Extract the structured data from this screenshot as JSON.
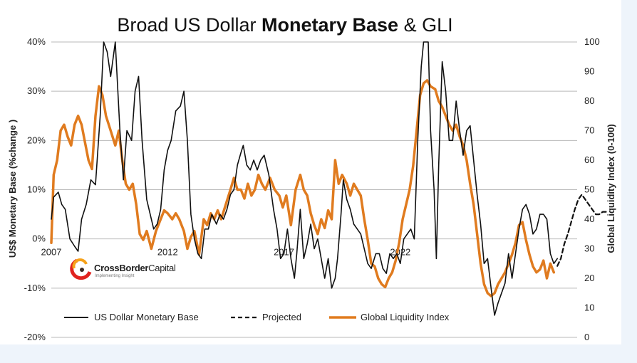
{
  "chart_data": {
    "type": "line",
    "title_regular_1": "Broad US Dollar ",
    "title_bold": "Monetary Base",
    "title_regular_2": " & GLI",
    "ylabel_left": "US$ Monetary Base (%change )",
    "ylabel_right": "Global Liquidity Index (0-100)",
    "left_axis": {
      "min": -20,
      "max": 40,
      "step": 10,
      "ticks": [
        "-20%",
        "-10%",
        "0%",
        "10%",
        "20%",
        "30%",
        "40%"
      ]
    },
    "right_axis": {
      "min": 0,
      "max": 100,
      "step": 10,
      "ticks": [
        "0",
        "10",
        "20",
        "30",
        "40",
        "50",
        "60",
        "70",
        "80",
        "90",
        "100"
      ]
    },
    "x_range": [
      2007.0,
      2029.6
    ],
    "x_ticks": [
      {
        "value": 2007,
        "label": "2007"
      },
      {
        "value": 2012,
        "label": "2012"
      },
      {
        "value": 2017,
        "label": "2017"
      },
      {
        "value": 2022,
        "label": "2022"
      }
    ],
    "grid": "horizontal",
    "legend_position": "bottom",
    "series": [
      {
        "name": "US Dollar Monetary Base",
        "axis": "left",
        "color": "#111111",
        "style": "solid",
        "points": [
          [
            2007.0,
            4
          ],
          [
            2007.1,
            8.5
          ],
          [
            2007.3,
            9.5
          ],
          [
            2007.45,
            7
          ],
          [
            2007.6,
            6
          ],
          [
            2007.8,
            0
          ],
          [
            2008.0,
            -1.5
          ],
          [
            2008.15,
            -2.5
          ],
          [
            2008.3,
            4
          ],
          [
            2008.5,
            7
          ],
          [
            2008.7,
            12
          ],
          [
            2008.9,
            11
          ],
          [
            2009.1,
            25
          ],
          [
            2009.25,
            42
          ],
          [
            2009.4,
            38
          ],
          [
            2009.55,
            33
          ],
          [
            2009.75,
            42
          ],
          [
            2009.95,
            22
          ],
          [
            2010.1,
            12
          ],
          [
            2010.25,
            22
          ],
          [
            2010.45,
            20
          ],
          [
            2010.6,
            30
          ],
          [
            2010.75,
            33
          ],
          [
            2010.9,
            20
          ],
          [
            2011.1,
            8
          ],
          [
            2011.25,
            5
          ],
          [
            2011.4,
            2
          ],
          [
            2011.55,
            3
          ],
          [
            2011.7,
            6
          ],
          [
            2011.85,
            14
          ],
          [
            2012.0,
            18
          ],
          [
            2012.15,
            20
          ],
          [
            2012.35,
            26
          ],
          [
            2012.55,
            27
          ],
          [
            2012.7,
            30
          ],
          [
            2012.85,
            20
          ],
          [
            2013.0,
            5
          ],
          [
            2013.15,
            0
          ],
          [
            2013.3,
            -3
          ],
          [
            2013.45,
            -4
          ],
          [
            2013.6,
            2
          ],
          [
            2013.75,
            2
          ],
          [
            2013.9,
            5
          ],
          [
            2014.1,
            3
          ],
          [
            2014.25,
            5
          ],
          [
            2014.4,
            4
          ],
          [
            2014.55,
            6
          ],
          [
            2014.7,
            9
          ],
          [
            2014.85,
            10
          ],
          [
            2015.0,
            15
          ],
          [
            2015.15,
            17.5
          ],
          [
            2015.25,
            19
          ],
          [
            2015.4,
            15
          ],
          [
            2015.55,
            14
          ],
          [
            2015.7,
            16
          ],
          [
            2015.85,
            14
          ],
          [
            2016.0,
            16
          ],
          [
            2016.15,
            17
          ],
          [
            2016.35,
            13
          ],
          [
            2016.55,
            6
          ],
          [
            2016.7,
            2
          ],
          [
            2016.85,
            -4
          ],
          [
            2017.0,
            -3
          ],
          [
            2017.15,
            2
          ],
          [
            2017.3,
            -4
          ],
          [
            2017.45,
            -8
          ],
          [
            2017.55,
            -3
          ],
          [
            2017.7,
            6
          ],
          [
            2017.85,
            -4
          ],
          [
            2018.0,
            -1
          ],
          [
            2018.15,
            3
          ],
          [
            2018.3,
            -2
          ],
          [
            2018.45,
            0
          ],
          [
            2018.6,
            -4
          ],
          [
            2018.75,
            -8
          ],
          [
            2018.9,
            -4
          ],
          [
            2019.05,
            -10
          ],
          [
            2019.2,
            -8
          ],
          [
            2019.3,
            -4
          ],
          [
            2019.45,
            5
          ],
          [
            2019.55,
            12
          ],
          [
            2019.7,
            8
          ],
          [
            2019.85,
            6
          ],
          [
            2020.0,
            3
          ],
          [
            2020.15,
            2
          ],
          [
            2020.3,
            1
          ],
          [
            2020.45,
            -2
          ],
          [
            2020.6,
            -5
          ],
          [
            2020.75,
            -6
          ],
          [
            2020.95,
            -3
          ],
          [
            2021.1,
            -3
          ],
          [
            2021.25,
            -6
          ],
          [
            2021.4,
            -7
          ],
          [
            2021.55,
            -3
          ],
          [
            2021.7,
            -4
          ],
          [
            2021.85,
            -3
          ],
          [
            2022.0,
            -5
          ],
          [
            2022.15,
            0
          ],
          [
            2022.3,
            1
          ],
          [
            2022.45,
            2
          ],
          [
            2022.6,
            0
          ],
          [
            2022.75,
            20
          ],
          [
            2022.9,
            35
          ],
          [
            2023.0,
            40
          ],
          [
            2023.1,
            42
          ],
          [
            2023.2,
            40
          ],
          [
            2023.3,
            22
          ],
          [
            2023.45,
            10
          ],
          [
            2023.55,
            -4
          ],
          [
            2023.65,
            15
          ],
          [
            2023.8,
            36
          ],
          [
            2023.95,
            30
          ],
          [
            2024.1,
            20
          ],
          [
            2024.25,
            20
          ],
          [
            2024.4,
            28
          ],
          [
            2024.55,
            22
          ],
          [
            2024.7,
            17
          ],
          [
            2024.85,
            22
          ],
          [
            2025.0,
            23
          ],
          [
            2025.15,
            16
          ],
          [
            2025.3,
            9
          ],
          [
            2025.45,
            3
          ],
          [
            2025.6,
            -5
          ],
          [
            2025.75,
            -4
          ],
          [
            2025.9,
            -10
          ],
          [
            2026.05,
            -15.5
          ],
          [
            2026.2,
            -13
          ],
          [
            2026.35,
            -11
          ],
          [
            2026.5,
            -9
          ],
          [
            2026.65,
            -3
          ],
          [
            2026.8,
            -8
          ],
          [
            2026.95,
            -3
          ],
          [
            2027.1,
            2
          ],
          [
            2027.25,
            6
          ],
          [
            2027.4,
            7
          ],
          [
            2027.55,
            5
          ],
          [
            2027.7,
            1
          ],
          [
            2027.85,
            2
          ],
          [
            2028.0,
            5
          ],
          [
            2028.15,
            5
          ],
          [
            2028.3,
            4
          ],
          [
            2028.45,
            -3
          ],
          [
            2028.6,
            -5
          ],
          [
            2028.75,
            -4
          ]
        ]
      },
      {
        "name": "Projected",
        "axis": "left",
        "color": "#111111",
        "style": "dashed",
        "points": [
          [
            2028.75,
            -5.5
          ],
          [
            2028.9,
            -4
          ],
          [
            2029.05,
            -1
          ],
          [
            2029.2,
            1
          ],
          [
            2029.35,
            3.5
          ],
          [
            2029.5,
            6
          ],
          [
            2029.65,
            8
          ],
          [
            2029.8,
            9
          ],
          [
            2029.95,
            8
          ],
          [
            2030.1,
            7
          ],
          [
            2030.25,
            6
          ],
          [
            2030.4,
            5
          ],
          [
            2030.55,
            5
          ],
          [
            2030.7,
            5.5
          ],
          [
            2030.85,
            5.5
          ]
        ]
      },
      {
        "name": "Global Liquidity Index",
        "axis": "right",
        "color": "#e07b1f",
        "style": "solid",
        "points": [
          [
            2007.0,
            32
          ],
          [
            2007.1,
            55
          ],
          [
            2007.25,
            60
          ],
          [
            2007.4,
            70
          ],
          [
            2007.55,
            72
          ],
          [
            2007.7,
            68
          ],
          [
            2007.85,
            65
          ],
          [
            2008.0,
            72
          ],
          [
            2008.15,
            75
          ],
          [
            2008.3,
            72
          ],
          [
            2008.45,
            66
          ],
          [
            2008.6,
            60
          ],
          [
            2008.75,
            57
          ],
          [
            2008.9,
            75
          ],
          [
            2009.05,
            85
          ],
          [
            2009.2,
            82
          ],
          [
            2009.35,
            75
          ],
          [
            2009.55,
            70
          ],
          [
            2009.75,
            65
          ],
          [
            2009.9,
            70
          ],
          [
            2010.05,
            60
          ],
          [
            2010.2,
            52
          ],
          [
            2010.35,
            50
          ],
          [
            2010.5,
            52
          ],
          [
            2010.65,
            45
          ],
          [
            2010.8,
            35
          ],
          [
            2010.95,
            33
          ],
          [
            2011.1,
            36
          ],
          [
            2011.3,
            30
          ],
          [
            2011.5,
            36
          ],
          [
            2011.7,
            40
          ],
          [
            2011.85,
            43
          ],
          [
            2012.0,
            42
          ],
          [
            2012.2,
            40
          ],
          [
            2012.35,
            42
          ],
          [
            2012.5,
            40
          ],
          [
            2012.7,
            36
          ],
          [
            2012.85,
            30
          ],
          [
            2013.0,
            34
          ],
          [
            2013.15,
            36
          ],
          [
            2013.35,
            28
          ],
          [
            2013.55,
            40
          ],
          [
            2013.7,
            38
          ],
          [
            2013.85,
            42
          ],
          [
            2014.0,
            40
          ],
          [
            2014.15,
            43
          ],
          [
            2014.3,
            40
          ],
          [
            2014.5,
            45
          ],
          [
            2014.7,
            50
          ],
          [
            2014.85,
            54
          ],
          [
            2015.0,
            50
          ],
          [
            2015.15,
            50
          ],
          [
            2015.3,
            47
          ],
          [
            2015.45,
            52
          ],
          [
            2015.6,
            48
          ],
          [
            2015.75,
            50
          ],
          [
            2015.9,
            55
          ],
          [
            2016.05,
            52
          ],
          [
            2016.2,
            50
          ],
          [
            2016.4,
            54
          ],
          [
            2016.6,
            50
          ],
          [
            2016.8,
            48
          ],
          [
            2016.95,
            44
          ],
          [
            2017.1,
            48
          ],
          [
            2017.3,
            38
          ],
          [
            2017.5,
            50
          ],
          [
            2017.7,
            55
          ],
          [
            2017.85,
            50
          ],
          [
            2018.0,
            48
          ],
          [
            2018.15,
            42
          ],
          [
            2018.3,
            38
          ],
          [
            2018.45,
            35
          ],
          [
            2018.6,
            40
          ],
          [
            2018.75,
            37
          ],
          [
            2018.9,
            43
          ],
          [
            2019.05,
            40
          ],
          [
            2019.2,
            60
          ],
          [
            2019.35,
            52
          ],
          [
            2019.5,
            55
          ],
          [
            2019.7,
            52
          ],
          [
            2019.85,
            48
          ],
          [
            2020.0,
            52
          ],
          [
            2020.15,
            50
          ],
          [
            2020.3,
            48
          ],
          [
            2020.45,
            40
          ],
          [
            2020.6,
            33
          ],
          [
            2020.75,
            25
          ],
          [
            2020.9,
            24
          ],
          [
            2021.05,
            20
          ],
          [
            2021.2,
            18
          ],
          [
            2021.35,
            17
          ],
          [
            2021.5,
            20
          ],
          [
            2021.65,
            22
          ],
          [
            2021.8,
            26
          ],
          [
            2021.95,
            32
          ],
          [
            2022.1,
            40
          ],
          [
            2022.25,
            45
          ],
          [
            2022.4,
            50
          ],
          [
            2022.55,
            58
          ],
          [
            2022.7,
            70
          ],
          [
            2022.85,
            82
          ],
          [
            2023.0,
            86
          ],
          [
            2023.15,
            87
          ],
          [
            2023.3,
            85
          ],
          [
            2023.5,
            84
          ],
          [
            2023.65,
            80
          ],
          [
            2023.8,
            78
          ],
          [
            2023.95,
            75
          ],
          [
            2024.1,
            72
          ],
          [
            2024.25,
            70
          ],
          [
            2024.4,
            72
          ],
          [
            2024.55,
            68
          ],
          [
            2024.7,
            65
          ],
          [
            2024.85,
            60
          ],
          [
            2025.0,
            52
          ],
          [
            2025.15,
            45
          ],
          [
            2025.3,
            35
          ],
          [
            2025.45,
            25
          ],
          [
            2025.6,
            18
          ],
          [
            2025.75,
            15
          ],
          [
            2025.9,
            14
          ],
          [
            2026.05,
            15
          ],
          [
            2026.2,
            18
          ],
          [
            2026.35,
            20
          ],
          [
            2026.5,
            22
          ],
          [
            2026.65,
            25
          ],
          [
            2026.8,
            28
          ],
          [
            2026.95,
            32
          ],
          [
            2027.1,
            38
          ],
          [
            2027.25,
            39
          ],
          [
            2027.4,
            33
          ],
          [
            2027.55,
            28
          ],
          [
            2027.7,
            24
          ],
          [
            2027.85,
            22
          ],
          [
            2028.0,
            23
          ],
          [
            2028.15,
            26
          ],
          [
            2028.3,
            20
          ],
          [
            2028.45,
            25
          ],
          [
            2028.6,
            22
          ]
        ]
      }
    ]
  },
  "logo": {
    "name_part1": "CrossBorder",
    "name_part2": "Capital",
    "tagline": "Implementing Insight",
    "colors": [
      "#e0231f",
      "#f6a21a",
      "#3a2a25"
    ]
  }
}
